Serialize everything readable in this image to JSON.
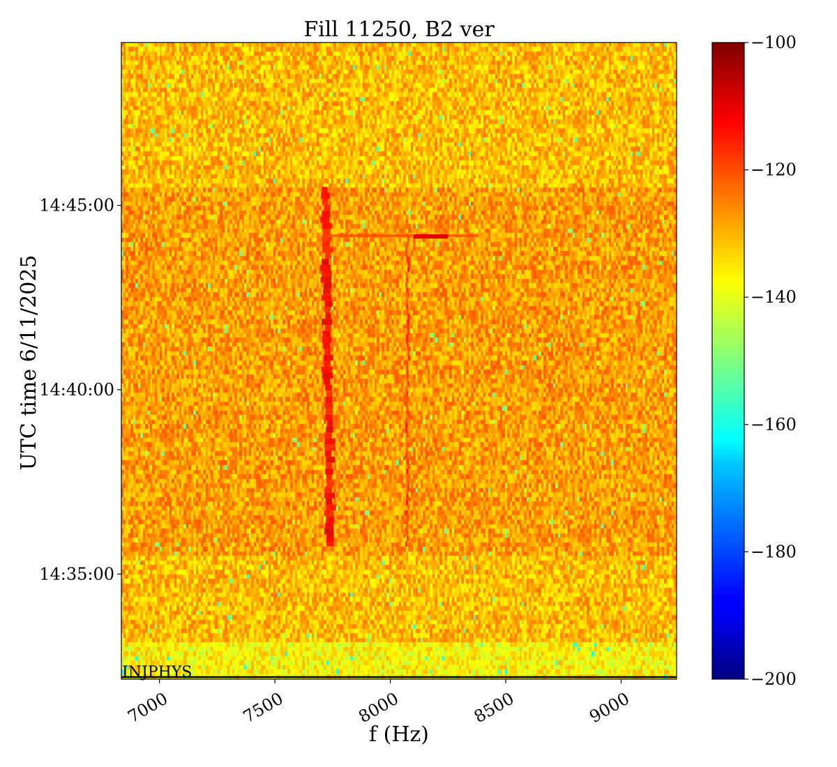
{
  "chart_data": {
    "type": "heatmap",
    "title": "Fill 11250, B2 ver",
    "xlabel": "f (Hz)",
    "ylabel": "UTC time 6/11/2025",
    "xlim": [
      6835,
      9240
    ],
    "ylim": [
      "14:32:09",
      "14:49:25"
    ],
    "x_ticks": [
      {
        "value": 7000,
        "label": "7000"
      },
      {
        "value": 7500,
        "label": "7500"
      },
      {
        "value": 8000,
        "label": "8000"
      },
      {
        "value": 8500,
        "label": "8500"
      },
      {
        "value": 9000,
        "label": "9000"
      }
    ],
    "y_ticks": [
      {
        "value": "14:35:00",
        "label": "14:35:00"
      },
      {
        "value": "14:40:00",
        "label": "14:40:00"
      },
      {
        "value": "14:45:00",
        "label": "14:45:00"
      }
    ],
    "colorbar": {
      "colormap": "jet",
      "range": [
        -200,
        -100
      ],
      "ticks": [
        {
          "value": -100,
          "label": "−100"
        },
        {
          "value": -120,
          "label": "−120"
        },
        {
          "value": -140,
          "label": "−140"
        },
        {
          "value": -160,
          "label": "−160"
        },
        {
          "value": -180,
          "label": "−180"
        },
        {
          "value": -200,
          "label": "−200"
        }
      ]
    },
    "background_level": -128,
    "features": [
      {
        "kind": "vertical_line",
        "freq_start": 7740,
        "freq_end": 7720,
        "time_start": "14:35:45",
        "time_end": "14:45:30",
        "level": -113
      },
      {
        "kind": "vertical_line",
        "freq_start": 8075,
        "freq_end": 8075,
        "time_start": "14:35:45",
        "time_end": "14:44:10",
        "level": -118
      },
      {
        "kind": "horizontal_line",
        "freq_start": 7720,
        "freq_end": 8380,
        "time": "14:44:10",
        "level": -120
      },
      {
        "kind": "horizontal_segment",
        "freq_start": 8100,
        "freq_end": 8250,
        "time": "14:44:10",
        "level": -110
      }
    ],
    "annotations": [
      {
        "text": "INJPHYS",
        "time": "14:32:12",
        "freq": 6835
      }
    ],
    "grid": false,
    "legend": "none"
  }
}
